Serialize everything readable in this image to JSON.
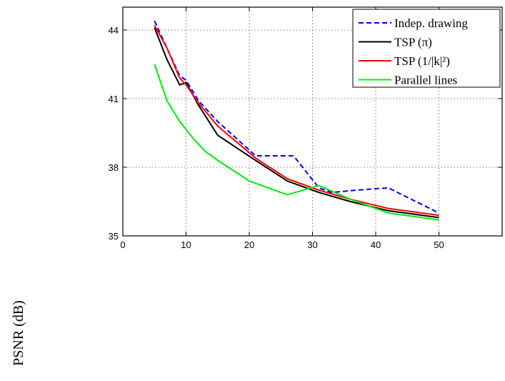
{
  "chart_data": {
    "type": "line",
    "title": "",
    "xlabel": "",
    "ylabel": "PSNR (dB)",
    "xlim": [
      0,
      60
    ],
    "ylim": [
      35,
      45
    ],
    "xticks": [
      "0",
      "10",
      "20",
      "30",
      "40",
      "50"
    ],
    "yticks": [
      "35",
      "38",
      "41",
      "44"
    ],
    "grid": true,
    "legend_position": "top-right",
    "series": [
      {
        "name": "Indep. drawing",
        "color": "#0000ff",
        "dash": "dashed",
        "x": [
          5,
          7,
          9,
          10,
          12,
          15,
          21,
          27,
          31,
          33,
          37,
          42,
          50
        ],
        "y": [
          44.4,
          43.2,
          42.0,
          41.8,
          40.9,
          40.0,
          38.5,
          38.5,
          37.1,
          36.9,
          37.0,
          37.1,
          36.0
        ]
      },
      {
        "name": "TSP (π)",
        "color": "#000000",
        "dash": "solid",
        "x": [
          5,
          7,
          9,
          10,
          12,
          15,
          21,
          26,
          31,
          36,
          42,
          50
        ],
        "y": [
          44.1,
          42.7,
          41.6,
          41.7,
          40.7,
          39.4,
          38.3,
          37.4,
          36.9,
          36.5,
          36.1,
          35.8
        ]
      },
      {
        "name": "TSP (1/|k|²)",
        "color": "#ff0000",
        "dash": "solid",
        "x": [
          5,
          7,
          9,
          10,
          12,
          15,
          21,
          26,
          31,
          36,
          42,
          50
        ],
        "y": [
          44.2,
          43.2,
          41.9,
          41.6,
          40.8,
          39.8,
          38.4,
          37.5,
          37.0,
          36.6,
          36.2,
          35.9
        ]
      },
      {
        "name": "Parallel lines",
        "color": "#00ee00",
        "dash": "solid",
        "x": [
          5,
          7,
          9,
          11,
          13,
          15,
          20,
          26,
          31,
          36,
          42,
          50
        ],
        "y": [
          42.5,
          40.9,
          40.0,
          39.3,
          38.7,
          38.3,
          37.4,
          36.8,
          37.2,
          36.6,
          36.0,
          35.7
        ]
      }
    ]
  }
}
